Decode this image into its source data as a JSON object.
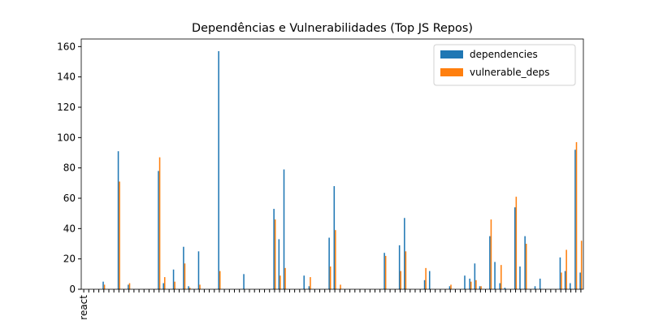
{
  "chart_data": {
    "type": "bar",
    "title": "Dependências e Vulnerabilidades (Top JS Repos)",
    "categories": [
      "react",
      null,
      null,
      null,
      null,
      null,
      null,
      null,
      null,
      null,
      null,
      null,
      null,
      null,
      null,
      null,
      null,
      null,
      null,
      null,
      null,
      null,
      null,
      null,
      null,
      null,
      null,
      null,
      null,
      null,
      null,
      null,
      null,
      null,
      null,
      null,
      null,
      null,
      null,
      null,
      null,
      null,
      null,
      null,
      null,
      null,
      null,
      null,
      null,
      null,
      null,
      null,
      null,
      null,
      null,
      null,
      null,
      null,
      null,
      null,
      null,
      null,
      null,
      null,
      null,
      null,
      null,
      null,
      null,
      null,
      null,
      null,
      null,
      null,
      null,
      null,
      null,
      null,
      null,
      null,
      null,
      null,
      null,
      null,
      null,
      null,
      null,
      null,
      null,
      null,
      null,
      null,
      null,
      null,
      null,
      null,
      null,
      null,
      null,
      null
    ],
    "series": [
      {
        "name": "dependencies",
        "color": "#1f77b4",
        "values": [
          0,
          0,
          0,
          0,
          5,
          0,
          0,
          91,
          0,
          3,
          0,
          0,
          0,
          0,
          0,
          78,
          4,
          0,
          13,
          0,
          28,
          2,
          0,
          25,
          0,
          0,
          0,
          157,
          0,
          0,
          0,
          0,
          10,
          0,
          0,
          0,
          0,
          0,
          53,
          33,
          79,
          0,
          0,
          0,
          9,
          2,
          0,
          0,
          0,
          34,
          68,
          0,
          0,
          0,
          0,
          0,
          0,
          0,
          0,
          0,
          24,
          0,
          0,
          29,
          47,
          0,
          0,
          0,
          6,
          12,
          0,
          0,
          0,
          2,
          0,
          0,
          9,
          7,
          17,
          2,
          0,
          35,
          18,
          4,
          1,
          0,
          54,
          15,
          35,
          0,
          2,
          7,
          0,
          0,
          0,
          21,
          12,
          4,
          92,
          11
        ]
      },
      {
        "name": "vulnerable_deps",
        "color": "#ff7f0e",
        "values": [
          0,
          0,
          0,
          0,
          3,
          0,
          0,
          71,
          0,
          4,
          0,
          0,
          0,
          0,
          0,
          87,
          8,
          0,
          5,
          0,
          17,
          1,
          0,
          3,
          0,
          0,
          0,
          12,
          0,
          0,
          0,
          0,
          0,
          0,
          0,
          0,
          0,
          0,
          46,
          9,
          14,
          0,
          0,
          0,
          0,
          8,
          0,
          0,
          0,
          15,
          39,
          3,
          0,
          0,
          0,
          0,
          0,
          0,
          0,
          0,
          22,
          0,
          0,
          12,
          25,
          0,
          0,
          0,
          14,
          0,
          0,
          0,
          0,
          3,
          0,
          0,
          0,
          5,
          6,
          2,
          0,
          46,
          0,
          16,
          0,
          0,
          61,
          0,
          30,
          0,
          0,
          0,
          0,
          0,
          0,
          11,
          26,
          0,
          97,
          32
        ]
      }
    ],
    "ylim": [
      0,
      165
    ],
    "yticks": [
      0,
      20,
      40,
      60,
      80,
      100,
      120,
      140,
      160
    ],
    "legend": "upper right"
  }
}
